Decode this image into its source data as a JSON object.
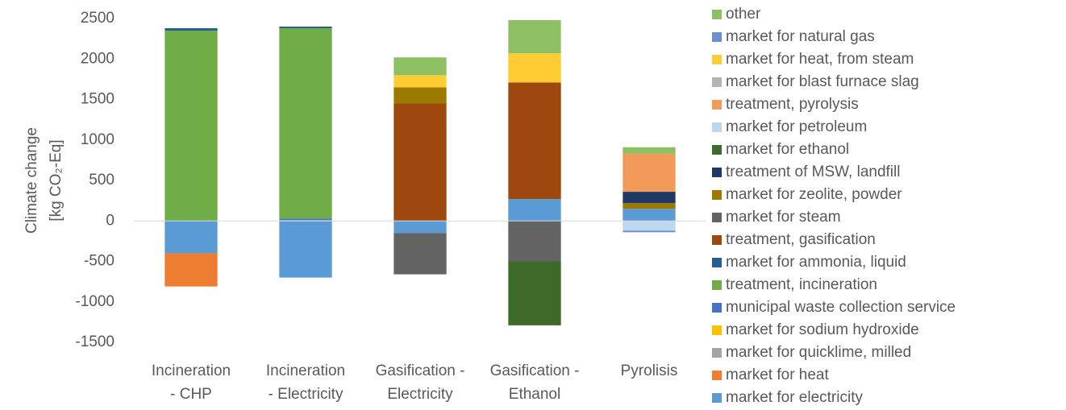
{
  "chart_data": {
    "type": "stacked_bar",
    "y_label": [
      "Climate change",
      "[kg CO₂-Eq]"
    ],
    "categories": [
      "Incineration\n- CHP",
      "Incineration\n- Electricity",
      "Gasification -\nElectricity",
      "Gasification -\nEthanol",
      "Pyrolisis"
    ],
    "ylim": [
      -1500,
      2500
    ],
    "yticks": [
      -1500,
      -1000,
      -500,
      0,
      500,
      1000,
      1500,
      2000,
      2500
    ],
    "grid": false,
    "legend": "right",
    "series": [
      {
        "name": "market for electricity",
        "color": "#5b9bd5",
        "values": [
          -400,
          -700,
          -150,
          270,
          150
        ]
      },
      {
        "name": "market for heat",
        "color": "#ed7d31",
        "values": [
          -410,
          0,
          0,
          0,
          0
        ]
      },
      {
        "name": "market for quicklime, milled",
        "color": "#a5a5a5",
        "values": [
          0,
          10,
          0,
          0,
          0
        ]
      },
      {
        "name": "market for sodium hydroxide",
        "color": "#ffc000",
        "values": [
          0,
          0,
          0,
          0,
          0
        ]
      },
      {
        "name": "municipal waste collection service",
        "color": "#4472c4",
        "values": [
          0,
          20,
          0,
          0,
          0
        ]
      },
      {
        "name": "treatment, incineration",
        "color": "#70ad47",
        "values": [
          2350,
          2350,
          0,
          0,
          0
        ]
      },
      {
        "name": "market for ammonia, liquid",
        "color": "#255e91",
        "values": [
          30,
          20,
          0,
          0,
          0
        ]
      },
      {
        "name": "treatment, gasification",
        "color": "#9e480e",
        "values": [
          0,
          0,
          1450,
          1440,
          0
        ]
      },
      {
        "name": "market for steam",
        "color": "#636363",
        "values": [
          0,
          0,
          -510,
          -500,
          0
        ]
      },
      {
        "name": "market for zeolite, powder",
        "color": "#9c7a00",
        "values": [
          0,
          0,
          200,
          0,
          70
        ]
      },
      {
        "name": "treatment of MSW, landfill",
        "color": "#203864",
        "values": [
          0,
          0,
          0,
          0,
          140
        ]
      },
      {
        "name": "market for ethanol",
        "color": "#3e6b2a",
        "values": [
          0,
          0,
          0,
          -790,
          0
        ]
      },
      {
        "name": "market for petroleum",
        "color": "#bdd7ee",
        "values": [
          0,
          0,
          0,
          0,
          -120
        ]
      },
      {
        "name": "treatment,  pyrolysis",
        "color": "#f19a5a",
        "values": [
          0,
          0,
          0,
          0,
          470
        ]
      },
      {
        "name": "market for blast furnace slag",
        "color": "#b4b4b4",
        "values": [
          0,
          0,
          0,
          0,
          0
        ]
      },
      {
        "name": "market for heat, from steam",
        "color": "#ffcc33",
        "values": [
          0,
          0,
          150,
          360,
          0
        ]
      },
      {
        "name": "market for natural gas",
        "color": "#6b8fd0",
        "values": [
          0,
          0,
          0,
          0,
          -20
        ]
      },
      {
        "name": "other",
        "color": "#8cc063",
        "values": [
          0,
          0,
          220,
          410,
          80
        ]
      }
    ]
  }
}
